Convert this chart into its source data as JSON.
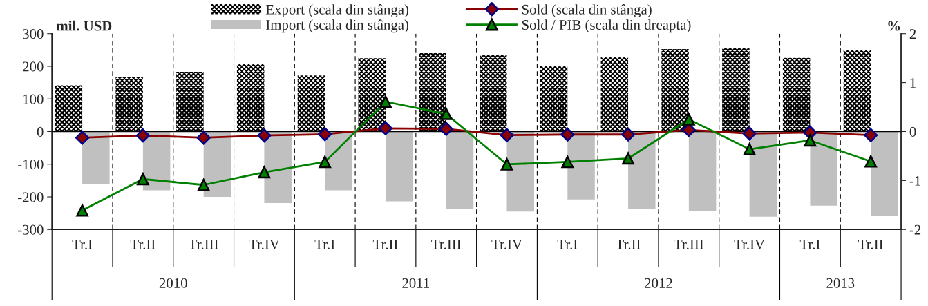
{
  "chart_data": {
    "type": "bar",
    "ylabel": "mil. USD",
    "y2label": "%",
    "categories": [
      "Tr.I",
      "Tr.II",
      "Tr.III",
      "Tr.IV",
      "Tr.I",
      "Tr.II",
      "Tr.III",
      "Tr.IV",
      "Tr.I",
      "Tr.II",
      "Tr.III",
      "Tr.IV",
      "Tr.I",
      "Tr.II"
    ],
    "series": [
      {
        "name": "Export (scala din stânga)",
        "color": "#000000",
        "values": [
          142,
          166,
          183,
          208,
          172,
          225,
          240,
          236,
          202,
          228,
          253,
          257,
          226,
          251
        ]
      },
      {
        "name": "Import (scala din stânga)",
        "color": "#c0c0c0",
        "values": [
          -160,
          -180,
          -200,
          -219,
          -180,
          -214,
          -238,
          -245,
          -208,
          -236,
          -243,
          -261,
          -227,
          -259
        ]
      },
      {
        "name": "Sold (scala din stânga)",
        "type": "line",
        "color": "#8b0000",
        "marker": "diamond",
        "values": [
          -19,
          -12,
          -19,
          -12,
          -8,
          10,
          8,
          -11,
          -9,
          -9,
          5,
          -6,
          -3,
          -11
        ]
      },
      {
        "name": "Sold / PIB (scala din dreapta)",
        "type": "line",
        "color": "#008000",
        "marker": "triangle",
        "axis": "y2",
        "values": [
          -1.61,
          -0.97,
          -1.09,
          -0.83,
          -0.62,
          0.61,
          0.36,
          -0.67,
          -0.62,
          -0.55,
          0.25,
          -0.36,
          -0.18,
          -0.61
        ]
      }
    ],
    "ylim": [
      -300,
      300
    ],
    "yticks": [
      -300,
      -200,
      -100,
      0,
      100,
      200,
      300
    ],
    "y2lim": [
      -2,
      2
    ],
    "y2ticks": [
      -2,
      -1,
      0,
      1,
      2
    ],
    "ref_lines": [
      {
        "axis": "y",
        "value": 0,
        "color": "#000000"
      }
    ],
    "annotations": [
      "2010",
      "2011",
      "2012",
      "2013"
    ],
    "grid": "x",
    "legend": "top"
  }
}
